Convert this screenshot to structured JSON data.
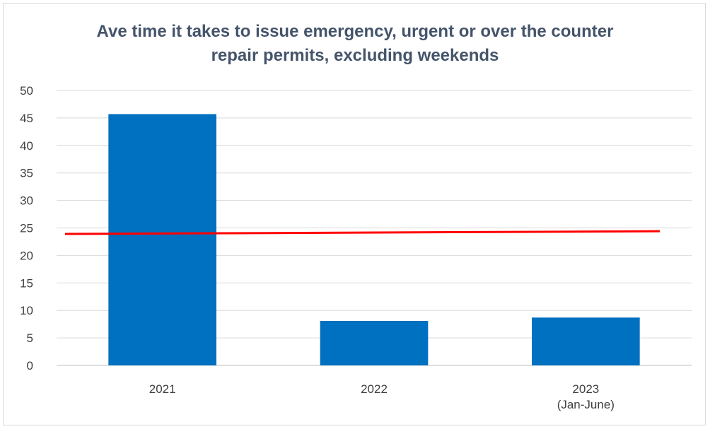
{
  "chart_data": {
    "type": "bar",
    "title_lines": [
      "Ave time it takes to issue emergency, urgent or over the counter",
      "repair permits, excluding weekends"
    ],
    "categories": [
      [
        "2021"
      ],
      [
        "2022"
      ],
      [
        "2023",
        "(Jan-June)"
      ]
    ],
    "values": [
      45.7,
      8.1,
      8.7
    ],
    "ylim": [
      0,
      50
    ],
    "yticks": [
      0,
      5,
      10,
      15,
      20,
      25,
      30,
      35,
      40,
      45,
      50
    ],
    "grid": true,
    "legend": "none",
    "bar_color": "#0070c0",
    "trendline": {
      "color": "#ff0000",
      "start": 23.9,
      "end": 24.4
    }
  }
}
